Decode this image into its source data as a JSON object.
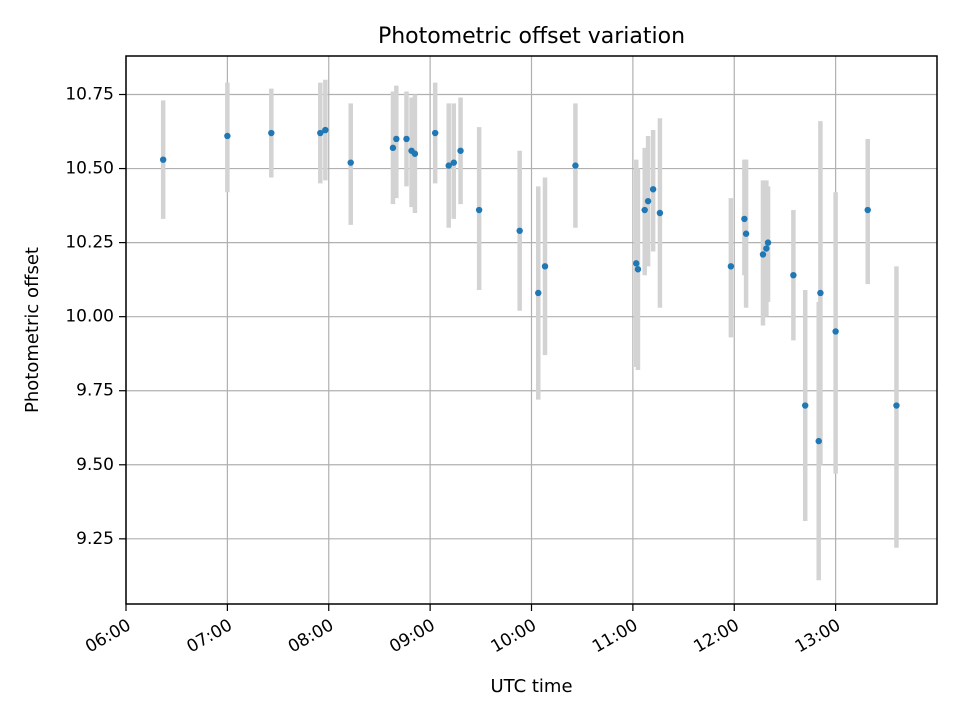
{
  "chart_data": {
    "type": "scatter",
    "title": "Photometric offset variation",
    "xlabel": "UTC time",
    "ylabel": "Photometric offset",
    "x_axis_type": "time",
    "xlim": [
      "06:00",
      "14:00"
    ],
    "ylim": [
      9.03,
      10.88
    ],
    "xticks": [
      "06:00",
      "07:00",
      "08:00",
      "09:00",
      "10:00",
      "11:00",
      "12:00",
      "13:00"
    ],
    "yticks": [
      9.25,
      9.5,
      9.75,
      10.0,
      10.25,
      10.5,
      10.75
    ],
    "ytick_labels": [
      "9.25",
      "9.50",
      "9.75",
      "10.00",
      "10.25",
      "10.50",
      "10.75"
    ],
    "grid": true,
    "legend": "none",
    "point_color": "#1f77b4",
    "errorbar_color": "#d3d3d3",
    "points": [
      {
        "x": "06:22",
        "y": 10.53,
        "err_low": 10.33,
        "err_high": 10.73
      },
      {
        "x": "07:00",
        "y": 10.61,
        "err_low": 10.42,
        "err_high": 10.79
      },
      {
        "x": "07:26",
        "y": 10.62,
        "err_low": 10.47,
        "err_high": 10.77
      },
      {
        "x": "07:55",
        "y": 10.62,
        "err_low": 10.45,
        "err_high": 10.79
      },
      {
        "x": "07:58",
        "y": 10.63,
        "err_low": 10.46,
        "err_high": 10.8
      },
      {
        "x": "08:13",
        "y": 10.52,
        "err_low": 10.31,
        "err_high": 10.72
      },
      {
        "x": "08:38",
        "y": 10.57,
        "err_low": 10.38,
        "err_high": 10.76
      },
      {
        "x": "08:40",
        "y": 10.6,
        "err_low": 10.4,
        "err_high": 10.78
      },
      {
        "x": "08:46",
        "y": 10.6,
        "err_low": 10.44,
        "err_high": 10.76
      },
      {
        "x": "08:49",
        "y": 10.56,
        "err_low": 10.37,
        "err_high": 10.74
      },
      {
        "x": "08:51",
        "y": 10.55,
        "err_low": 10.35,
        "err_high": 10.75
      },
      {
        "x": "09:03",
        "y": 10.62,
        "err_low": 10.45,
        "err_high": 10.79
      },
      {
        "x": "09:11",
        "y": 10.51,
        "err_low": 10.3,
        "err_high": 10.72
      },
      {
        "x": "09:14",
        "y": 10.52,
        "err_low": 10.33,
        "err_high": 10.72
      },
      {
        "x": "09:18",
        "y": 10.56,
        "err_low": 10.38,
        "err_high": 10.74
      },
      {
        "x": "09:29",
        "y": 10.36,
        "err_low": 10.09,
        "err_high": 10.64
      },
      {
        "x": "09:53",
        "y": 10.29,
        "err_low": 10.02,
        "err_high": 10.56
      },
      {
        "x": "10:04",
        "y": 10.08,
        "err_low": 9.72,
        "err_high": 10.44
      },
      {
        "x": "10:08",
        "y": 10.17,
        "err_low": 9.87,
        "err_high": 10.47
      },
      {
        "x": "10:26",
        "y": 10.51,
        "err_low": 10.3,
        "err_high": 10.72
      },
      {
        "x": "11:02",
        "y": 10.18,
        "err_low": 9.83,
        "err_high": 10.53
      },
      {
        "x": "11:03",
        "y": 10.16,
        "err_low": 9.82,
        "err_high": 10.5
      },
      {
        "x": "11:07",
        "y": 10.36,
        "err_low": 10.14,
        "err_high": 10.57
      },
      {
        "x": "11:09",
        "y": 10.39,
        "err_low": 10.17,
        "err_high": 10.61
      },
      {
        "x": "11:12",
        "y": 10.43,
        "err_low": 10.22,
        "err_high": 10.63
      },
      {
        "x": "11:16",
        "y": 10.35,
        "err_low": 10.03,
        "err_high": 10.67
      },
      {
        "x": "11:58",
        "y": 10.17,
        "err_low": 9.93,
        "err_high": 10.4
      },
      {
        "x": "12:06",
        "y": 10.33,
        "err_low": 10.14,
        "err_high": 10.53
      },
      {
        "x": "12:07",
        "y": 10.28,
        "err_low": 10.03,
        "err_high": 10.53
      },
      {
        "x": "12:17",
        "y": 10.21,
        "err_low": 9.97,
        "err_high": 10.46
      },
      {
        "x": "12:19",
        "y": 10.23,
        "err_low": 10.0,
        "err_high": 10.46
      },
      {
        "x": "12:20",
        "y": 10.25,
        "err_low": 10.05,
        "err_high": 10.44
      },
      {
        "x": "12:35",
        "y": 10.14,
        "err_low": 9.92,
        "err_high": 10.36
      },
      {
        "x": "12:42",
        "y": 9.7,
        "err_low": 9.31,
        "err_high": 10.09
      },
      {
        "x": "12:50",
        "y": 9.58,
        "err_low": 9.11,
        "err_high": 10.05
      },
      {
        "x": "12:51",
        "y": 10.08,
        "err_low": 9.5,
        "err_high": 10.66
      },
      {
        "x": "13:00",
        "y": 9.95,
        "err_low": 9.47,
        "err_high": 10.42
      },
      {
        "x": "13:19",
        "y": 10.36,
        "err_low": 10.11,
        "err_high": 10.6
      },
      {
        "x": "13:36",
        "y": 9.7,
        "err_low": 9.22,
        "err_high": 10.17
      }
    ]
  }
}
